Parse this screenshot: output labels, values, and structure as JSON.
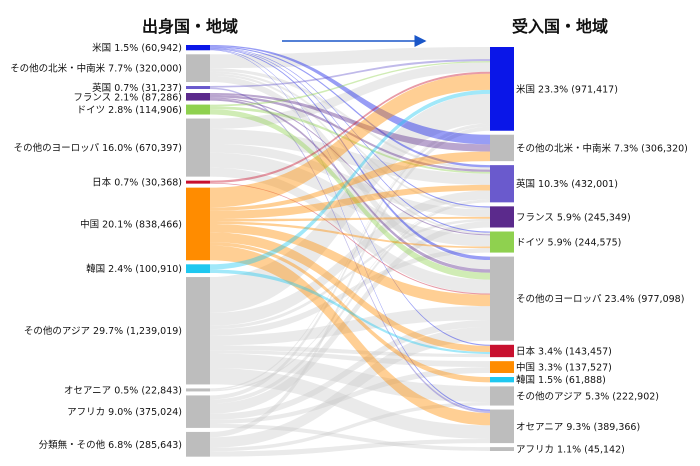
{
  "diagram": {
    "left_title": "出身国・地域",
    "right_title": "受入国・地域",
    "arrow": "→",
    "unit_note": ""
  },
  "sources": [
    {
      "key": "us",
      "name": "米国",
      "pct": "1.5%",
      "value": 60942,
      "label": "米国 1.5% (60,942)",
      "color": "#0a16e8"
    },
    {
      "key": "oam",
      "name": "その他の北米・中南米",
      "pct": "7.7%",
      "value": 320000,
      "label": "その他の北米・中南米 7.7% (320,000)",
      "color": "#bdbdbd"
    },
    {
      "key": "uk",
      "name": "英国",
      "pct": "0.7%",
      "value": 31237,
      "label": "英国 0.7% (31,237)",
      "color": "#6a5acd"
    },
    {
      "key": "fr",
      "name": "フランス",
      "pct": "2.1%",
      "value": 87286,
      "label": "フランス 2.1% (87,286)",
      "color": "#5b2a8c"
    },
    {
      "key": "de",
      "name": "ドイツ",
      "pct": "2.8%",
      "value": 114906,
      "label": "ドイツ 2.8% (114,906)",
      "color": "#8fd14f"
    },
    {
      "key": "oeu",
      "name": "その他のヨーロッパ",
      "pct": "16.0%",
      "value": 670397,
      "label": "その他のヨーロッパ 16.0% (670,397)",
      "color": "#bdbdbd"
    },
    {
      "key": "jp",
      "name": "日本",
      "pct": "0.7%",
      "value": 30368,
      "label": "日本 0.7% (30,368)",
      "color": "#c8102e"
    },
    {
      "key": "cn",
      "name": "中国",
      "pct": "20.1%",
      "value": 838466,
      "label": "中国 20.1% (838,466)",
      "color": "#ff8c00"
    },
    {
      "key": "kr",
      "name": "韓国",
      "pct": "2.4%",
      "value": 100910,
      "label": "韓国 2.4% (100,910)",
      "color": "#1ec8f0"
    },
    {
      "key": "oas",
      "name": "その他のアジア",
      "pct": "29.7%",
      "value": 1239019,
      "label": "その他のアジア 29.7% (1,239,019)",
      "color": "#bdbdbd"
    },
    {
      "key": "oc",
      "name": "オセアニア",
      "pct": "0.5%",
      "value": 22843,
      "label": "オセアニア 0.5% (22,843)",
      "color": "#bdbdbd"
    },
    {
      "key": "af",
      "name": "アフリカ",
      "pct": "9.0%",
      "value": 375024,
      "label": "アフリカ 9.0% (375,024)",
      "color": "#bdbdbd"
    },
    {
      "key": "un",
      "name": "分類無・その他",
      "pct": "6.8%",
      "value": 285643,
      "label": "分類無・その他 6.8% (285,643)",
      "color": "#bdbdbd"
    }
  ],
  "targets": [
    {
      "key": "us",
      "name": "米国",
      "pct": "23.3%",
      "value": 971417,
      "label": "米国 23.3% (971,417)",
      "color": "#0a16e8"
    },
    {
      "key": "oam",
      "name": "その他の北米・中南米",
      "pct": "7.3%",
      "value": 306320,
      "label": "その他の北米・中南米 7.3% (306,320)",
      "color": "#bdbdbd"
    },
    {
      "key": "uk",
      "name": "英国",
      "pct": "10.3%",
      "value": 432001,
      "label": "英国 10.3% (432,001)",
      "color": "#6a5acd"
    },
    {
      "key": "fr",
      "name": "フランス",
      "pct": "5.9%",
      "value": 245349,
      "label": "フランス 5.9% (245,349)",
      "color": "#5b2a8c"
    },
    {
      "key": "de",
      "name": "ドイツ",
      "pct": "5.9%",
      "value": 244575,
      "label": "ドイツ 5.9% (244,575)",
      "color": "#8fd14f"
    },
    {
      "key": "oeu",
      "name": "その他のヨーロッパ",
      "pct": "23.4%",
      "value": 977098,
      "label": "その他のヨーロッパ 23.4% (977,098)",
      "color": "#bdbdbd"
    },
    {
      "key": "jp",
      "name": "日本",
      "pct": "3.4%",
      "value": 143457,
      "label": "日本 3.4% (143,457)",
      "color": "#c8102e"
    },
    {
      "key": "cn",
      "name": "中国",
      "pct": "3.3%",
      "value": 137527,
      "label": "中国 3.3% (137,527)",
      "color": "#ff8c00"
    },
    {
      "key": "kr",
      "name": "韓国",
      "pct": "1.5%",
      "value": 61888,
      "label": "韓国 1.5% (61,888)",
      "color": "#1ec8f0"
    },
    {
      "key": "oas",
      "name": "その他のアジア",
      "pct": "5.3%",
      "value": 222902,
      "label": "その他のアジア 5.3% (222,902)",
      "color": "#bdbdbd"
    },
    {
      "key": "oc",
      "name": "オセアニア",
      "pct": "9.3%",
      "value": 389366,
      "label": "オセアニア 9.3% (389,366)",
      "color": "#bdbdbd"
    },
    {
      "key": "af",
      "name": "アフリカ",
      "pct": "1.1%",
      "value": 45142,
      "label": "アフリカ 1.1% (45,142)",
      "color": "#bdbdbd"
    }
  ],
  "flows": [
    {
      "from": "us",
      "to": "oam",
      "weight": 2
    },
    {
      "from": "us",
      "to": "uk",
      "weight": 2
    },
    {
      "from": "us",
      "to": "fr",
      "weight": 1
    },
    {
      "from": "us",
      "to": "de",
      "weight": 1
    },
    {
      "from": "us",
      "to": "oeu",
      "weight": 1.5
    },
    {
      "from": "us",
      "to": "jp",
      "weight": 1
    },
    {
      "from": "us",
      "to": "oc",
      "weight": 1
    },
    {
      "from": "oam",
      "to": "us",
      "weight": 9
    },
    {
      "from": "oam",
      "to": "oeu",
      "weight": 4
    },
    {
      "from": "oam",
      "to": "uk",
      "weight": 2
    },
    {
      "from": "oam",
      "to": "fr",
      "weight": 1.5
    },
    {
      "from": "oam",
      "to": "de",
      "weight": 1.5
    },
    {
      "from": "uk",
      "to": "us",
      "weight": 1.5
    },
    {
      "from": "uk",
      "to": "oc",
      "weight": 1.5
    },
    {
      "from": "fr",
      "to": "uk",
      "weight": 2
    },
    {
      "from": "fr",
      "to": "oam",
      "weight": 1.5
    },
    {
      "from": "fr",
      "to": "de",
      "weight": 1
    },
    {
      "from": "fr",
      "to": "oeu",
      "weight": 1.5
    },
    {
      "from": "de",
      "to": "oeu",
      "weight": 3
    },
    {
      "from": "de",
      "to": "uk",
      "weight": 1.5
    },
    {
      "from": "de",
      "to": "us",
      "weight": 1
    },
    {
      "from": "oeu",
      "to": "de",
      "weight": 10
    },
    {
      "from": "oeu",
      "to": "uk",
      "weight": 10
    },
    {
      "from": "oeu",
      "to": "us",
      "weight": 7
    },
    {
      "from": "oeu",
      "to": "fr",
      "weight": 6
    },
    {
      "from": "oeu",
      "to": "oeu",
      "weight": 6
    },
    {
      "from": "jp",
      "to": "us",
      "weight": 1.5
    },
    {
      "from": "jp",
      "to": "oeu",
      "weight": 0.5
    },
    {
      "from": "cn",
      "to": "us",
      "weight": 12
    },
    {
      "from": "cn",
      "to": "oam",
      "weight": 2
    },
    {
      "from": "cn",
      "to": "uk",
      "weight": 5
    },
    {
      "from": "cn",
      "to": "fr",
      "weight": 1.5
    },
    {
      "from": "cn",
      "to": "de",
      "weight": 1.5
    },
    {
      "from": "cn",
      "to": "oeu",
      "weight": 5
    },
    {
      "from": "cn",
      "to": "jp",
      "weight": 6
    },
    {
      "from": "cn",
      "to": "kr",
      "weight": 2
    },
    {
      "from": "cn",
      "to": "oc",
      "weight": 9
    },
    {
      "from": "kr",
      "to": "us",
      "weight": 3
    },
    {
      "from": "kr",
      "to": "jp",
      "weight": 2
    },
    {
      "from": "oas",
      "to": "us",
      "weight": 22
    },
    {
      "from": "oas",
      "to": "uk",
      "weight": 8
    },
    {
      "from": "oas",
      "to": "fr",
      "weight": 2
    },
    {
      "from": "oas",
      "to": "de",
      "weight": 4
    },
    {
      "from": "oas",
      "to": "oeu",
      "weight": 6
    },
    {
      "from": "oas",
      "to": "jp",
      "weight": 3
    },
    {
      "from": "oas",
      "to": "cn",
      "weight": 2
    },
    {
      "from": "oas",
      "to": "oas",
      "weight": 9
    },
    {
      "from": "oas",
      "to": "oc",
      "weight": 10
    },
    {
      "from": "oc",
      "to": "us",
      "weight": 0.5
    },
    {
      "from": "oc",
      "to": "uk",
      "weight": 0.5
    },
    {
      "from": "af",
      "to": "fr",
      "weight": 5
    },
    {
      "from": "af",
      "to": "us",
      "weight": 2
    },
    {
      "from": "af",
      "to": "uk",
      "weight": 2
    },
    {
      "from": "af",
      "to": "oeu",
      "weight": 3
    },
    {
      "from": "af",
      "to": "cn",
      "weight": 2
    },
    {
      "from": "af",
      "to": "af",
      "weight": 2
    },
    {
      "from": "un",
      "to": "us",
      "weight": 3
    },
    {
      "from": "un",
      "to": "oeu",
      "weight": 6
    },
    {
      "from": "un",
      "to": "oas",
      "weight": 2
    },
    {
      "from": "un",
      "to": "oc",
      "weight": 3
    }
  ]
}
